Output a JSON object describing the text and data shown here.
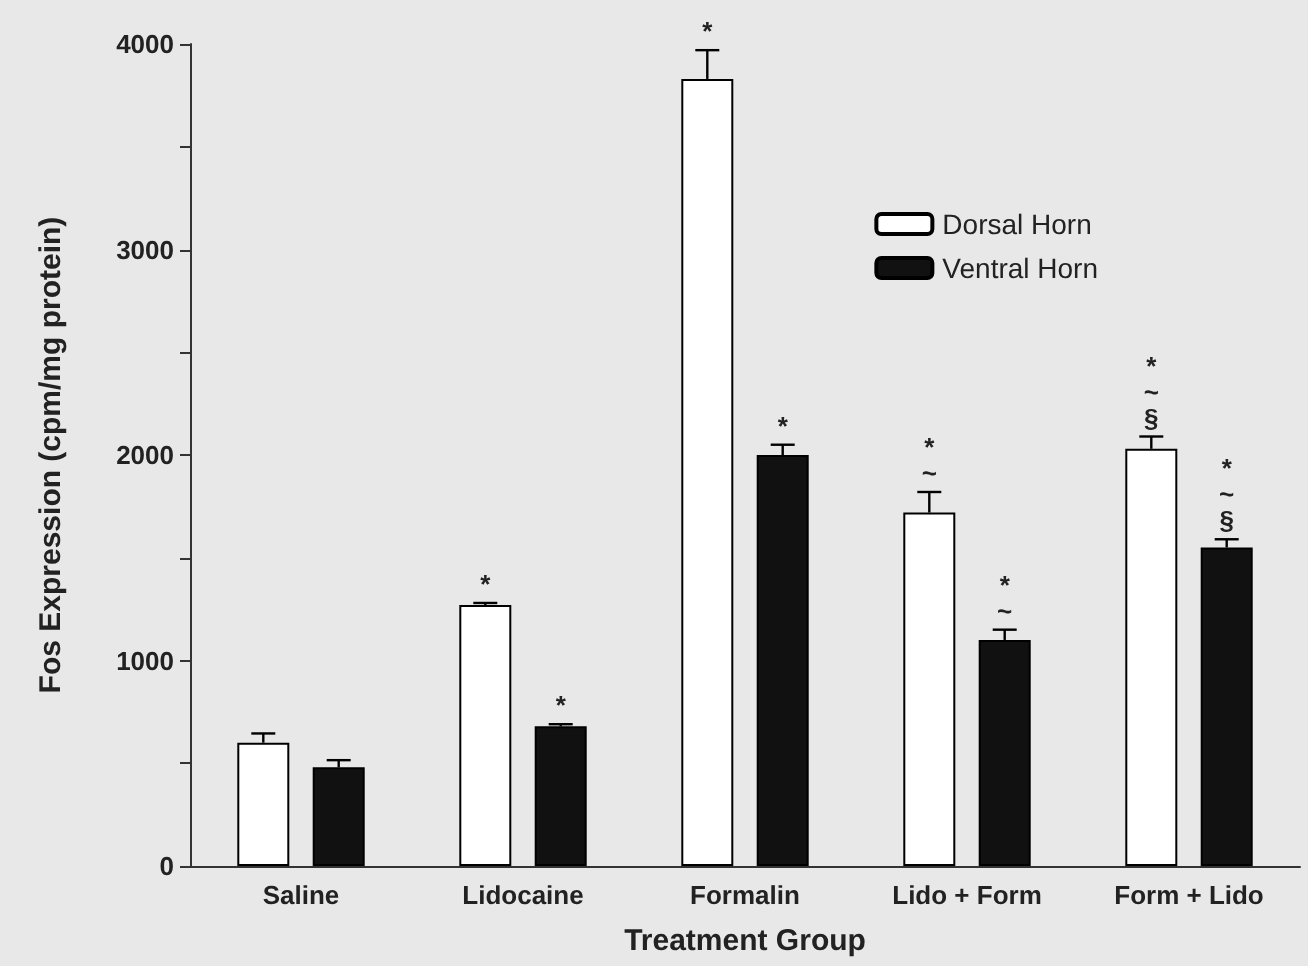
{
  "chart_data": {
    "type": "bar",
    "xlabel": "Treatment Group",
    "ylabel": "Fos Expression (cpm/mg protein)",
    "categories": [
      "Saline",
      "Lidocaine",
      "Formalin",
      "Lido + Form",
      "Form + Lido"
    ],
    "series": [
      {
        "name": "Dorsal Horn",
        "color": "#ffffff",
        "values": [
          600,
          1270,
          3830,
          1720,
          2030
        ],
        "errors": [
          45,
          10,
          140,
          100,
          60
        ],
        "value_labels": [
          null,
          "*",
          "*",
          "*\n~",
          "*\n~\n§"
        ]
      },
      {
        "name": "Ventral Horn",
        "color": "#111111",
        "values": [
          480,
          680,
          2000,
          1100,
          1550
        ],
        "errors": [
          35,
          10,
          50,
          50,
          40
        ],
        "value_labels": [
          null,
          "*",
          "*",
          "*\n~",
          "*\n~\n§"
        ]
      }
    ],
    "ylim": [
      0,
      4000
    ],
    "yticks": [
      0,
      {
        "value": 500,
        "label": null
      },
      1000,
      {
        "value": 1500,
        "label": null
      },
      2000,
      {
        "value": 2500,
        "label": null
      },
      3000,
      {
        "value": 3500,
        "label": null
      },
      4000
    ],
    "grid": false,
    "legend": "top right"
  }
}
